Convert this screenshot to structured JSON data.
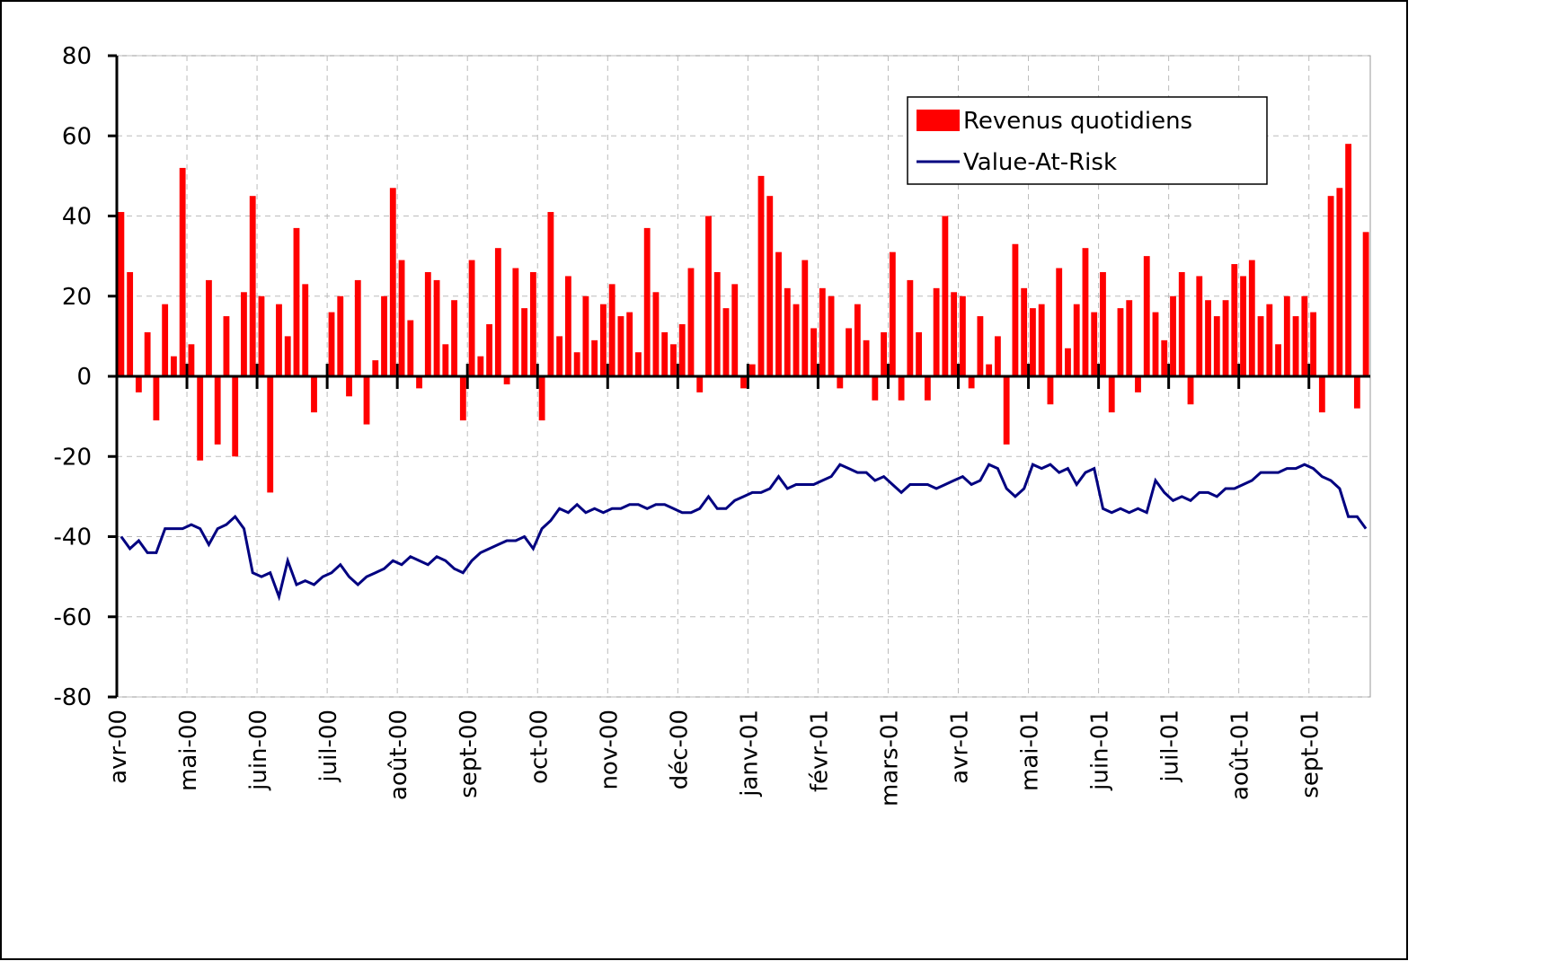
{
  "chart_data": {
    "type": "bar",
    "categories": [
      "avr-00",
      null,
      null,
      null,
      null,
      null,
      null,
      null,
      "mai-00",
      null,
      null,
      null,
      null,
      null,
      null,
      null,
      "juin-00",
      null,
      null,
      null,
      null,
      null,
      null,
      null,
      "juil-00",
      null,
      null,
      null,
      null,
      null,
      null,
      null,
      "août-00",
      null,
      null,
      null,
      null,
      null,
      null,
      null,
      "sept-00",
      null,
      null,
      null,
      null,
      null,
      null,
      null,
      "oct-00",
      null,
      null,
      null,
      null,
      null,
      null,
      null,
      "nov-00",
      null,
      null,
      null,
      null,
      null,
      null,
      null,
      "déc-00",
      null,
      null,
      null,
      null,
      null,
      null,
      null,
      "janv-01",
      null,
      null,
      null,
      null,
      null,
      null,
      null,
      "févr-01",
      null,
      null,
      null,
      null,
      null,
      null,
      null,
      "mars-01",
      null,
      null,
      null,
      null,
      null,
      null,
      null,
      "avr-01",
      null,
      null,
      null,
      null,
      null,
      null,
      null,
      "mai-01",
      null,
      null,
      null,
      null,
      null,
      null,
      null,
      "juin-01",
      null,
      null,
      null,
      null,
      null,
      null,
      null,
      "juil-01",
      null,
      null,
      null,
      null,
      null,
      null,
      null,
      "août-01",
      null,
      null,
      null,
      null,
      null,
      null,
      null,
      "sept-01",
      null,
      null,
      null,
      null,
      null,
      null
    ],
    "series": [
      {
        "name": "Revenus quotidiens",
        "type": "bar",
        "color": "#ff0000",
        "values": [
          41,
          26,
          -4,
          11,
          -11,
          18,
          5,
          52,
          8,
          -21,
          24,
          -17,
          15,
          -20,
          21,
          45,
          20,
          -29,
          18,
          10,
          37,
          23,
          -9,
          0,
          16,
          20,
          -5,
          24,
          -12,
          4,
          20,
          47,
          29,
          14,
          -3,
          26,
          24,
          8,
          19,
          -11,
          29,
          5,
          13,
          32,
          -2,
          27,
          17,
          26,
          -11,
          41,
          10,
          25,
          6,
          20,
          9,
          18,
          23,
          15,
          16,
          6,
          37,
          21,
          11,
          8,
          13,
          27,
          -4,
          40,
          26,
          17,
          23,
          -3,
          3,
          50,
          45,
          31,
          22,
          18,
          29,
          12,
          22,
          20,
          -3,
          12,
          18,
          9,
          -6,
          11,
          31,
          -6,
          24,
          11,
          -6,
          22,
          40,
          21,
          20,
          -3,
          15,
          3,
          10,
          -17,
          33,
          22,
          17,
          18,
          -7,
          27,
          7,
          18,
          32,
          16,
          26,
          -9,
          17,
          19,
          -4,
          30,
          16,
          9,
          20,
          26,
          -7,
          25,
          19,
          15,
          19,
          28,
          25,
          29,
          15,
          18,
          8,
          20,
          15,
          20,
          16,
          -9,
          45,
          47,
          58,
          -8,
          36
        ]
      },
      {
        "name": "Value-At-Risk",
        "type": "line",
        "color": "#000080",
        "values": [
          -40,
          -43,
          -41,
          -44,
          -44,
          -38,
          -38,
          -38,
          -37,
          -38,
          -42,
          -38,
          -37,
          -35,
          -38,
          -49,
          -50,
          -49,
          -55,
          -46,
          -52,
          -51,
          -52,
          -50,
          -49,
          -47,
          -50,
          -52,
          -50,
          -49,
          -48,
          -46,
          -47,
          -45,
          -46,
          -47,
          -45,
          -46,
          -48,
          -49,
          -46,
          -44,
          -43,
          -42,
          -41,
          -41,
          -40,
          -43,
          -38,
          -36,
          -33,
          -34,
          -32,
          -34,
          -33,
          -34,
          -33,
          -33,
          -32,
          -32,
          -33,
          -32,
          -32,
          -33,
          -34,
          -34,
          -33,
          -30,
          -33,
          -33,
          -31,
          -30,
          -29,
          -29,
          -28,
          -25,
          -28,
          -27,
          -27,
          -27,
          -26,
          -25,
          -22,
          -23,
          -24,
          -24,
          -26,
          -25,
          -27,
          -29,
          -27,
          -27,
          -27,
          -28,
          -27,
          -26,
          -25,
          -27,
          -26,
          -22,
          -23,
          -28,
          -30,
          -28,
          -22,
          -23,
          -22,
          -24,
          -23,
          -27,
          -24,
          -23,
          -33,
          -34,
          -33,
          -34,
          -33,
          -34,
          -26,
          -29,
          -31,
          -30,
          -31,
          -29,
          -29,
          -30,
          -28,
          -28,
          -27,
          -26,
          -24,
          -24,
          -24,
          -23,
          -23,
          -22,
          -23,
          -25,
          -26,
          -28,
          -35,
          -35,
          -38
        ]
      }
    ],
    "ylim": [
      -80,
      80
    ],
    "yticks": [
      -80,
      -60,
      -40,
      -20,
      0,
      20,
      40,
      60,
      80
    ],
    "grid": true,
    "legend": "top-right"
  }
}
